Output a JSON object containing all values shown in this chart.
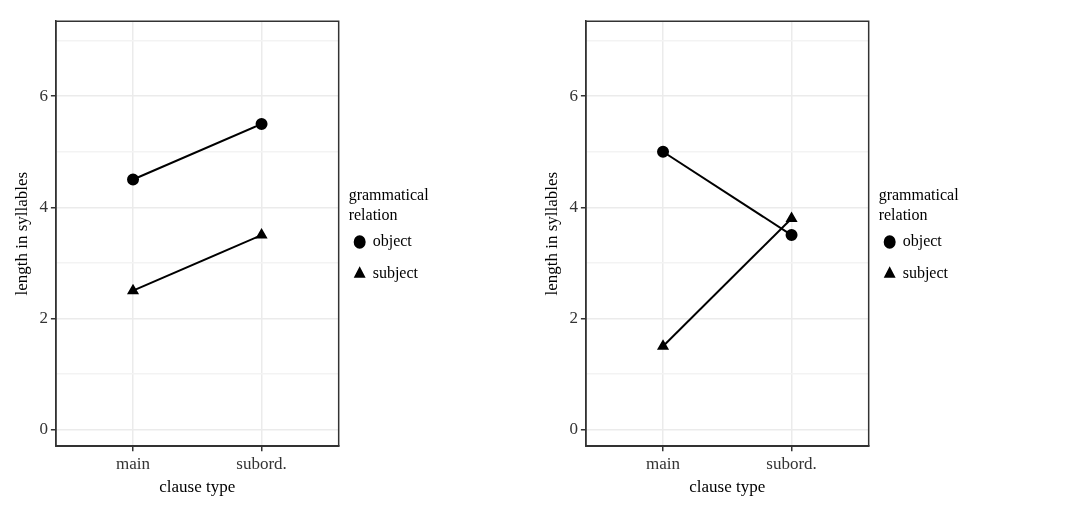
{
  "chart_data": [
    {
      "type": "line",
      "categories": [
        "main",
        "subord."
      ],
      "xlabel": "clause type",
      "ylabel": "length in syllables",
      "legend_title": "grammatical relation",
      "legend": "right",
      "grid": true,
      "ylim": [
        -0.3,
        7.35
      ],
      "yticks": [
        0,
        {
          "value": 1,
          "label": null
        },
        2,
        {
          "value": 3,
          "label": null
        },
        4,
        {
          "value": 5,
          "label": null
        },
        6,
        {
          "value": 7,
          "label": null
        }
      ],
      "series": [
        {
          "name": "object",
          "color": "#000000",
          "marker": "circle",
          "values": [
            4.5,
            5.5
          ]
        },
        {
          "name": "subject",
          "color": "#000000",
          "marker": "triangle",
          "values": [
            2.5,
            3.5
          ]
        }
      ]
    },
    {
      "type": "line",
      "categories": [
        "main",
        "subord."
      ],
      "xlabel": "clause type",
      "ylabel": "length in syllables",
      "legend_title": "grammatical relation",
      "legend": "right",
      "grid": true,
      "ylim": [
        -0.3,
        7.35
      ],
      "yticks": [
        0,
        {
          "value": 1,
          "label": null
        },
        2,
        {
          "value": 3,
          "label": null
        },
        4,
        {
          "value": 5,
          "label": null
        },
        6,
        {
          "value": 7,
          "label": null
        }
      ],
      "series": [
        {
          "name": "object",
          "color": "#000000",
          "marker": "circle",
          "values": [
            5.0,
            3.5
          ]
        },
        {
          "name": "subject",
          "color": "#000000",
          "marker": "triangle",
          "values": [
            1.5,
            3.8
          ]
        }
      ]
    }
  ]
}
